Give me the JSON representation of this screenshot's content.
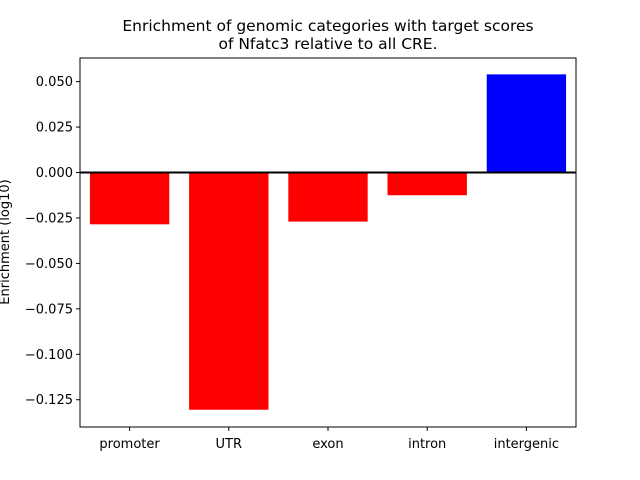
{
  "chart_data": {
    "type": "bar",
    "title": [
      "Enrichment of genomic categories with target scores",
      "of Nfatc3 relative to all CRE."
    ],
    "xlabel": "",
    "ylabel": "Enrichment (log10)",
    "categories": [
      "promoter",
      "UTR",
      "exon",
      "intron",
      "intergenic"
    ],
    "values": [
      -0.0285,
      -0.1305,
      -0.027,
      -0.0125,
      0.054
    ],
    "colors": [
      "#ff0000",
      "#ff0000",
      "#ff0000",
      "#ff0000",
      "#0000ff"
    ],
    "ylim": [
      -0.14,
      0.063
    ],
    "yticks": [
      0.05,
      0.025,
      0.0,
      -0.025,
      -0.05,
      -0.075,
      -0.1,
      -0.125
    ],
    "ytick_labels": [
      "0.050",
      "0.025",
      "0.000",
      "−0.025",
      "−0.050",
      "−0.075",
      "−0.100",
      "−0.125"
    ],
    "zero_line": true,
    "grid": false,
    "legend": "none"
  }
}
